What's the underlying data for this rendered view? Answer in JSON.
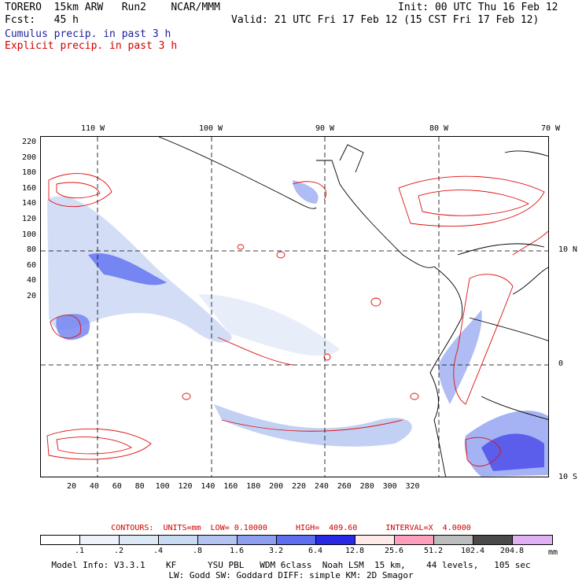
{
  "header": {
    "title_left": "TORERO  15km ARW   Run2    NCAR/MMM",
    "init": "Init: 00 UTC Thu 16 Feb 12",
    "fcst": "Fcst:   45 h",
    "valid": "Valid: 21 UTC Fri 17 Feb 12 (15 CST Fri 17 Feb 12)",
    "field1": "Cumulus precip. in past 3 h",
    "field2": "Explicit precip. in past 3 h"
  },
  "map": {
    "top_lon_labels": [
      "110 W",
      "100 W",
      "90 W",
      "80 W",
      "70 W"
    ],
    "right_lat_labels": [
      "10 N",
      "0",
      "10 S"
    ],
    "y_ticks": [
      "220",
      "200",
      "180",
      "160",
      "140",
      "120",
      "100",
      "80",
      "60",
      "40",
      "20"
    ],
    "x_ticks": [
      "20",
      "40",
      "60",
      "80",
      "100",
      "120",
      "140",
      "160",
      "180",
      "200",
      "220",
      "240",
      "260",
      "280",
      "300",
      "320"
    ]
  },
  "contours": {
    "text": "CONTOURS:  UNITS=mm  LOW= 0.10000      HIGH=  409.60      INTERVAL=X  4.0000"
  },
  "colorbar": {
    "colors": [
      "#ffffff",
      "#eef3fb",
      "#dde8f7",
      "#c9dbf3",
      "#b3c4f0",
      "#8f9ff0",
      "#5e6ef0",
      "#2828e6",
      "#ffe9e9",
      "#ff9fbe",
      "#bdbdbd",
      "#4a4a4a",
      "#e0b0f5"
    ],
    "labels": [
      ".1",
      ".2",
      ".4",
      ".8",
      "1.6",
      "3.2",
      "6.4",
      "12.8",
      "25.6",
      "51.2",
      "102.4",
      "204.8"
    ],
    "units": "mm"
  },
  "footer": {
    "line1": "Model Info: V3.3.1    KF      YSU PBL   WDM 6class  Noah LSM  15 km,    44 levels,   105 sec",
    "line2": "LW: Godd SW: Goddard DIFF: simple KM: 2D Smagor"
  }
}
